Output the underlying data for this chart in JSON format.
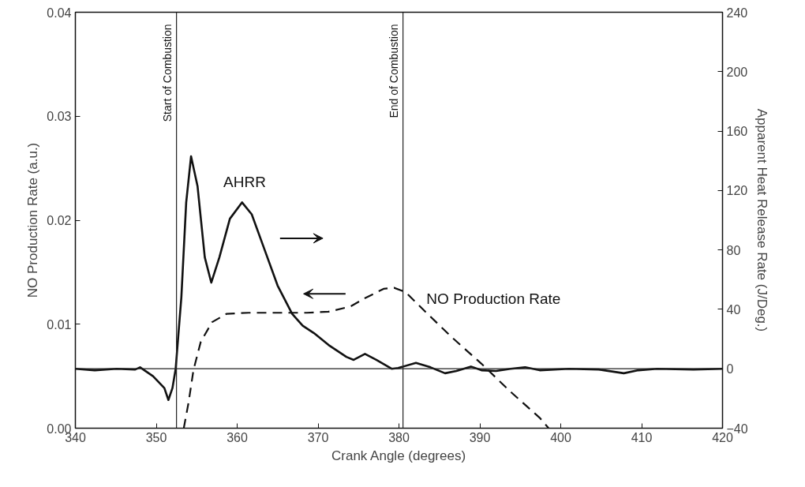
{
  "chart_data": {
    "type": "line",
    "xlabel": "Crank Angle (degrees)",
    "ylabel": "NO Production Rate (a.u.)",
    "y2label": "Apparent Heat Release Rate (J/Deg.)",
    "xlim": [
      340,
      420
    ],
    "xticks": [
      340,
      350,
      360,
      370,
      380,
      390,
      400,
      410,
      420
    ],
    "ylim": [
      0,
      0.04
    ],
    "yticks": [
      {
        "value": 0,
        "label": "0.00"
      },
      {
        "value": 0.01,
        "label": "0.01"
      },
      {
        "value": 0.02,
        "label": "0.02"
      },
      {
        "value": 0.03,
        "label": "0.03"
      },
      {
        "value": 0.04,
        "label": "0.04"
      }
    ],
    "y2lim": [
      -40,
      240
    ],
    "y2ticks": [
      -40,
      0,
      40,
      80,
      120,
      160,
      200,
      240
    ],
    "grid": false,
    "legend": false,
    "series": [
      {
        "name": "AHRR",
        "color": "#111111",
        "axis": "y2",
        "line_style": "solid",
        "x": [
          340,
          342.4,
          345.1,
          347.4,
          348,
          349.6,
          351,
          351.5,
          352,
          352.4,
          353.1,
          353.7,
          354.3,
          355.1,
          356,
          356.8,
          357.8,
          359.1,
          360.6,
          361.8,
          363.4,
          365,
          366.8,
          368.1,
          369.5,
          371.3,
          373.5,
          374.4,
          375.8,
          377.2,
          379.1,
          379.9,
          382.1,
          383.9,
          385.7,
          387.1,
          388.9,
          390.2,
          392,
          393.8,
          395.6,
          397.4,
          401,
          404.7,
          407.8,
          409.6,
          411.9,
          416.4,
          420
        ],
        "values": [
          0,
          -1,
          0,
          -0.5,
          1,
          -5,
          -13,
          -21,
          -13,
          0,
          48,
          112,
          143,
          123,
          75,
          58,
          75,
          101,
          112,
          104,
          80,
          56,
          37,
          29,
          24,
          16,
          8,
          6,
          10,
          6,
          0,
          0.5,
          4,
          1,
          -3,
          -1.5,
          1.5,
          -1,
          -1.5,
          0,
          1,
          -1,
          0,
          -0.5,
          -3,
          -1,
          0,
          -0.5,
          0
        ]
      },
      {
        "name": "NO Production Rate",
        "color": "#111111",
        "axis": "y",
        "line_style": "dashed",
        "x": [
          353.4,
          354,
          354.6,
          355.5,
          356.9,
          358.7,
          361.4,
          365,
          368.6,
          371.3,
          374,
          375.8,
          378.1,
          379.4,
          380.8,
          383,
          386.6,
          390.2,
          393.8,
          397.4,
          398.5
        ],
        "values": [
          0,
          0.0025,
          0.0056,
          0.0083,
          0.0102,
          0.011,
          0.0111,
          0.0111,
          0.0111,
          0.0112,
          0.0117,
          0.0125,
          0.0134,
          0.0135,
          0.0131,
          0.0114,
          0.0087,
          0.0062,
          0.0035,
          0.001,
          0
        ]
      }
    ],
    "ref_lines": [
      {
        "axis": "x",
        "value": 352.5,
        "label": "Start of Combustion"
      },
      {
        "axis": "x",
        "value": 380.5,
        "label": "End of Combustion"
      },
      {
        "axis": "y2",
        "value": 0,
        "label": null
      }
    ]
  }
}
